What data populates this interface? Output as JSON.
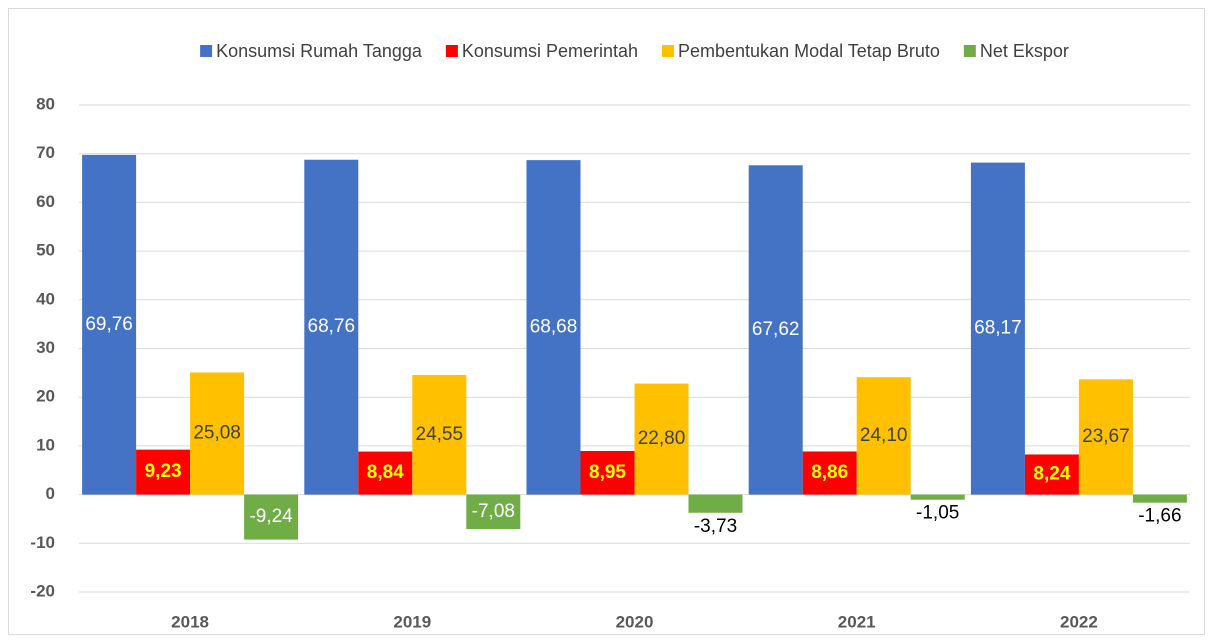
{
  "chart_data": {
    "type": "bar",
    "categories": [
      "2018",
      "2019",
      "2020",
      "2021",
      "2022"
    ],
    "series": [
      {
        "name": "Konsumsi Rumah Tangga",
        "color": "#4472c4",
        "values": [
          69.76,
          68.76,
          68.68,
          67.62,
          68.17
        ],
        "value_labels": [
          "69,76",
          "68,76",
          "68,68",
          "67,62",
          "68,17"
        ]
      },
      {
        "name": "Konsumsi Pemerintah",
        "color": "#ff0000",
        "values": [
          9.23,
          8.84,
          8.95,
          8.86,
          8.24
        ],
        "value_labels": [
          "9,23",
          "8,84",
          "8,95",
          "8,86",
          "8,24"
        ]
      },
      {
        "name": "Pembentukan Modal Tetap Bruto",
        "color": "#ffc000",
        "values": [
          25.08,
          24.55,
          22.8,
          24.1,
          23.67
        ],
        "value_labels": [
          "25,08",
          "24,55",
          "22,80",
          "24,10",
          "23,67"
        ]
      },
      {
        "name": "Net Ekspor",
        "color": "#70ad47",
        "values": [
          -9.24,
          -7.08,
          -3.73,
          -1.05,
          -1.66
        ],
        "value_labels": [
          "-9,24",
          "-7,08",
          "-3,73",
          "-1,05",
          "-1,66"
        ]
      }
    ],
    "ylim": [
      -20,
      80
    ],
    "yticks": [
      -20,
      -10,
      0,
      10,
      20,
      30,
      40,
      50,
      60,
      70,
      80
    ],
    "grid": true,
    "legend": "top"
  }
}
